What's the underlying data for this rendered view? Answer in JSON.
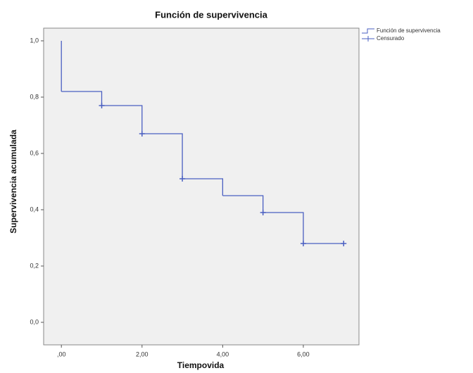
{
  "chart_data": {
    "type": "step",
    "title": "Función de supervivencia",
    "x_label": "Tiempovida",
    "y_label": "Supervivencia acumulada",
    "series": [
      {
        "name": "Función de supervivencia",
        "color": "#4a5fc1",
        "x": [
          0,
          0,
          1,
          2,
          3,
          4,
          5,
          6,
          7
        ],
        "values": [
          1.0,
          0.82,
          0.77,
          0.67,
          0.51,
          0.45,
          0.39,
          0.28,
          0.28
        ]
      },
      {
        "name": "Censurado",
        "color": "#4a5fc1",
        "marker": "+",
        "x": [
          1,
          2,
          3,
          5,
          6,
          7
        ],
        "values": [
          0.77,
          0.67,
          0.51,
          0.39,
          0.28,
          0.28
        ]
      }
    ],
    "xlim": [
      -0.44,
      7.38
    ],
    "ylim": [
      -0.08,
      1.045
    ],
    "xticks": [
      {
        "value": 0,
        "label": ",00"
      },
      {
        "value": 2,
        "label": "2,00"
      },
      {
        "value": 4,
        "label": "4,00"
      },
      {
        "value": 6,
        "label": "6,00"
      }
    ],
    "yticks": [
      {
        "value": 0,
        "label": "0,0"
      },
      {
        "value": 0.2,
        "label": "0,2"
      },
      {
        "value": 0.4,
        "label": "0,4"
      },
      {
        "value": 0.6,
        "label": "0,6"
      },
      {
        "value": 0.8,
        "label": "0,8"
      },
      {
        "value": 1,
        "label": "1,0"
      }
    ],
    "legend": "top-right-outside"
  }
}
